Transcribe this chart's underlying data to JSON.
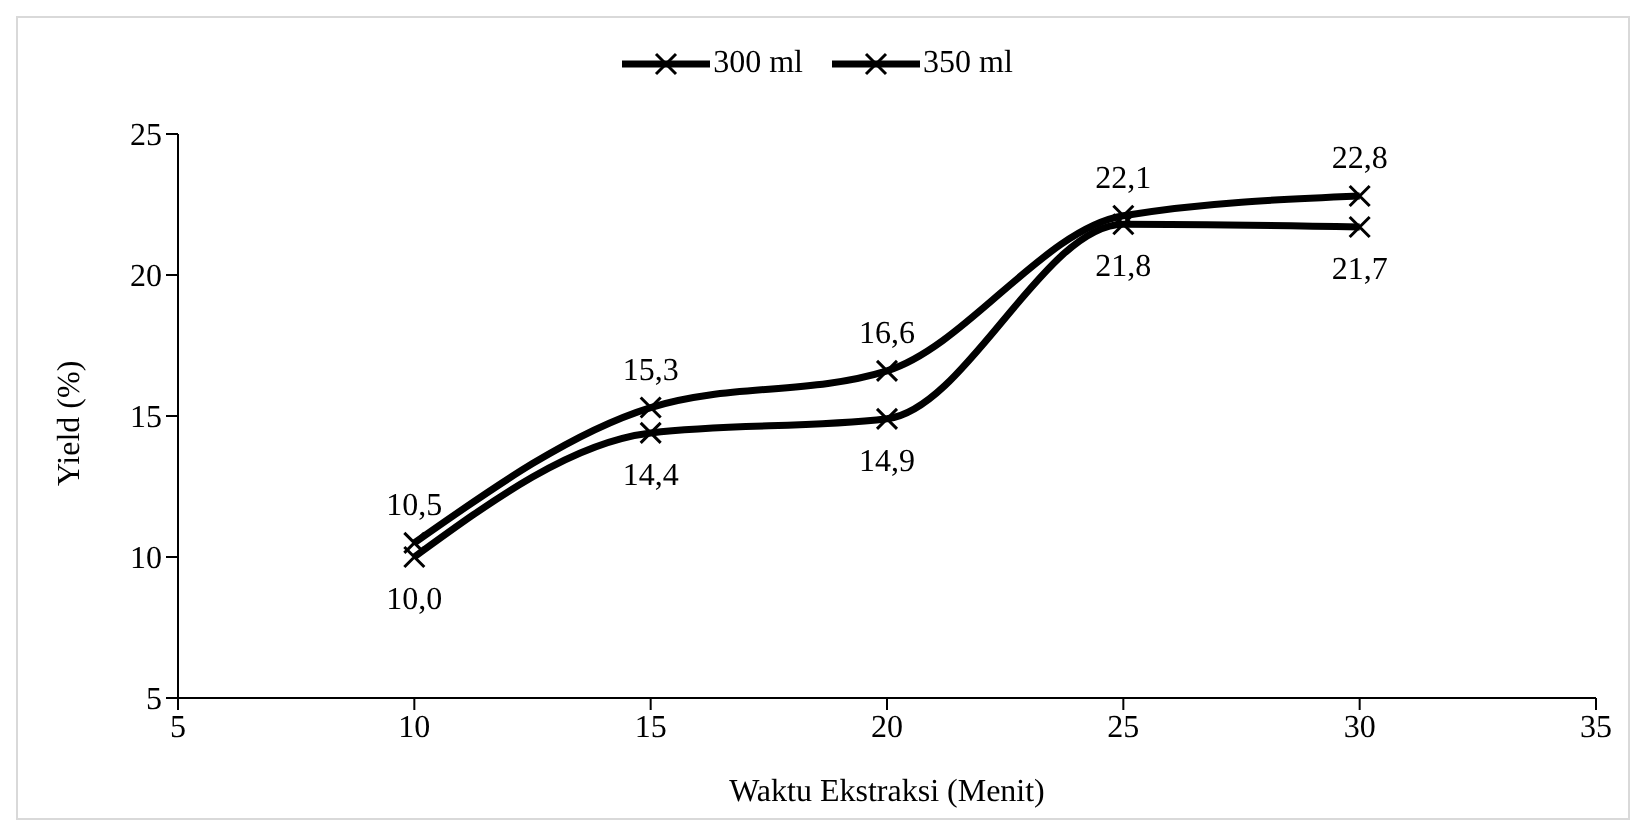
{
  "chart_data": {
    "type": "line",
    "xlabel": "Waktu Ekstraksi (Menit)",
    "ylabel": "Yield (%)",
    "x": [
      10,
      15,
      20,
      25,
      30
    ],
    "series": [
      {
        "name": "300 ml",
        "color": "#000000",
        "marker": "cross",
        "values": [
          10.5,
          15.3,
          16.6,
          22.1,
          22.8
        ],
        "value_labels": [
          "10,5",
          "15,3",
          "16,6",
          "22,1",
          "22,8"
        ]
      },
      {
        "name": "350 ml",
        "color": "#000000",
        "marker": "cross",
        "values": [
          10.0,
          14.4,
          14.9,
          21.8,
          21.7
        ],
        "value_labels": [
          "10,0",
          "14,4",
          "14,9",
          "21,8",
          "21,7"
        ]
      }
    ],
    "xlim": [
      5,
      35
    ],
    "xticks": [
      5,
      10,
      15,
      20,
      25,
      30,
      35
    ],
    "ylim": [
      5,
      25
    ],
    "yticks": [
      5,
      10,
      15,
      20,
      25
    ],
    "grid": false,
    "legend": "top",
    "line_style": "solid"
  }
}
